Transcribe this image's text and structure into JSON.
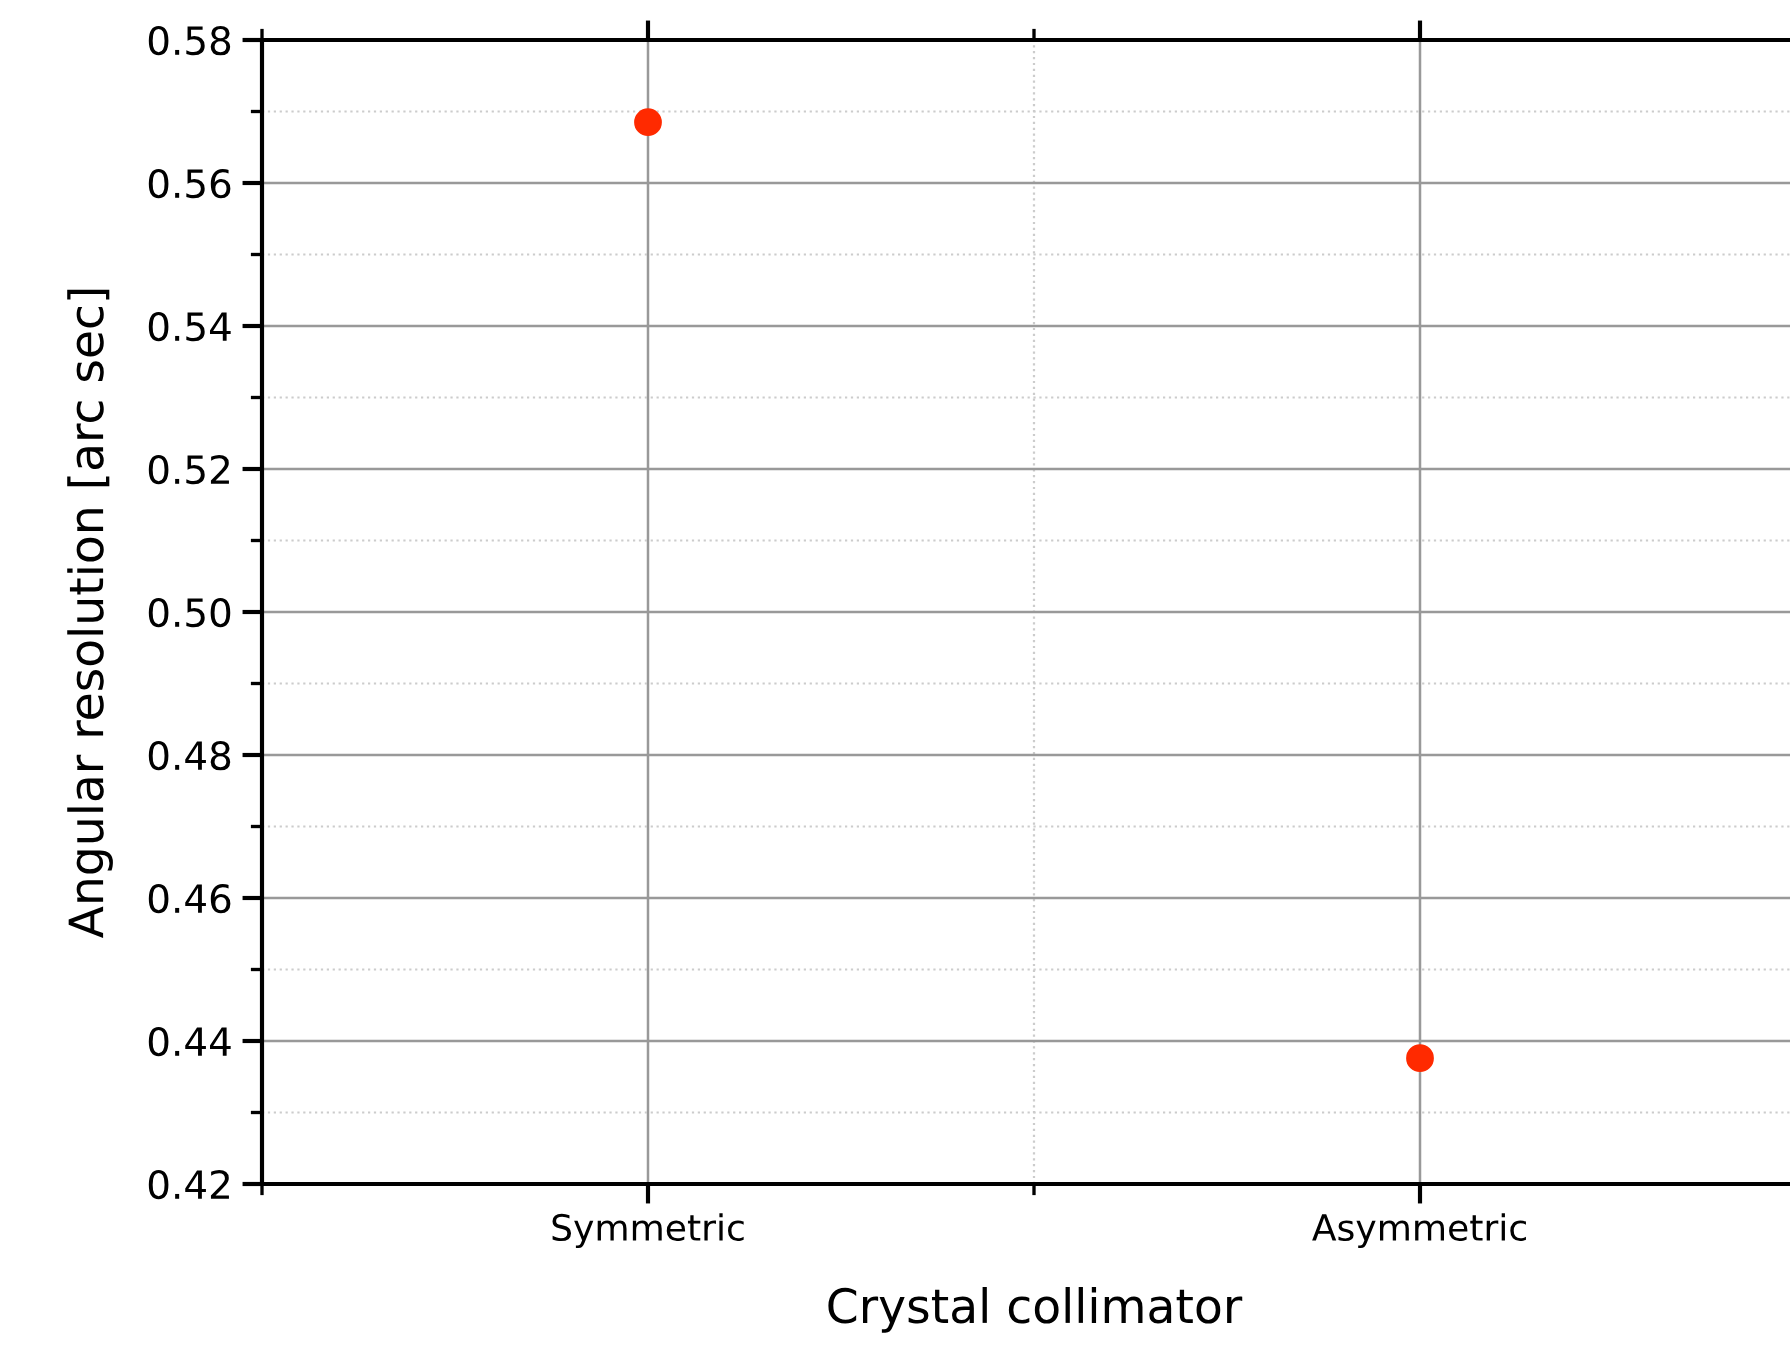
{
  "chart_data": {
    "type": "scatter",
    "xlabel": "Crystal collimator",
    "ylabel": "Angular resolution [arc sec]",
    "categories": [
      "Symmetric",
      "Asymmetric"
    ],
    "series": [
      {
        "color": "#ff2a00",
        "values": [
          0.5685,
          0.4376
        ]
      }
    ],
    "ylim": [
      0.42,
      0.58
    ],
    "yticks": [
      0.42,
      {
        "value": 0.43,
        "label": null
      },
      0.44,
      {
        "value": 0.45,
        "label": null
      },
      0.46,
      {
        "value": 0.47,
        "label": null
      },
      0.48,
      {
        "value": 0.49,
        "label": null
      },
      {
        "value": 0.5,
        "label": "0.50"
      },
      {
        "value": 0.51,
        "label": null
      },
      0.52,
      {
        "value": 0.53,
        "label": null
      },
      0.54,
      {
        "value": 0.55,
        "label": null
      },
      0.56,
      {
        "value": 0.57,
        "label": null
      },
      0.58
    ],
    "grid": true,
    "marker": "circle",
    "legend": false
  }
}
